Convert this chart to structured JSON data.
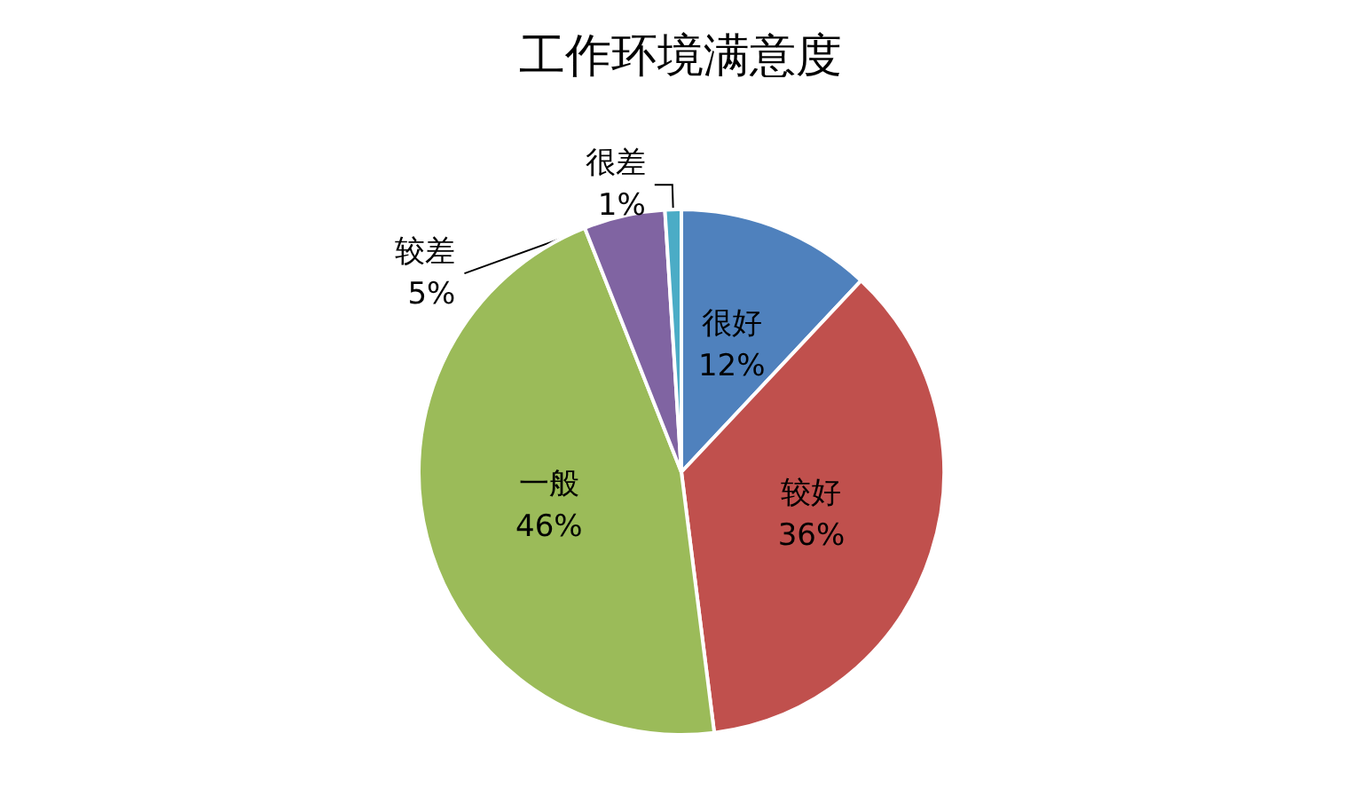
{
  "chart_data": {
    "type": "pie",
    "title": "工作环境满意度",
    "categories": [
      "很好",
      "较好",
      "一般",
      "较差",
      "很差"
    ],
    "values": [
      12,
      36,
      46,
      5,
      1
    ],
    "value_labels": [
      "12%",
      "36%",
      "46%",
      "5%",
      "1%"
    ],
    "colors": [
      "#4f81bd",
      "#c0504d",
      "#9bbb59",
      "#8064a2",
      "#4bacc6"
    ],
    "legend": false
  }
}
